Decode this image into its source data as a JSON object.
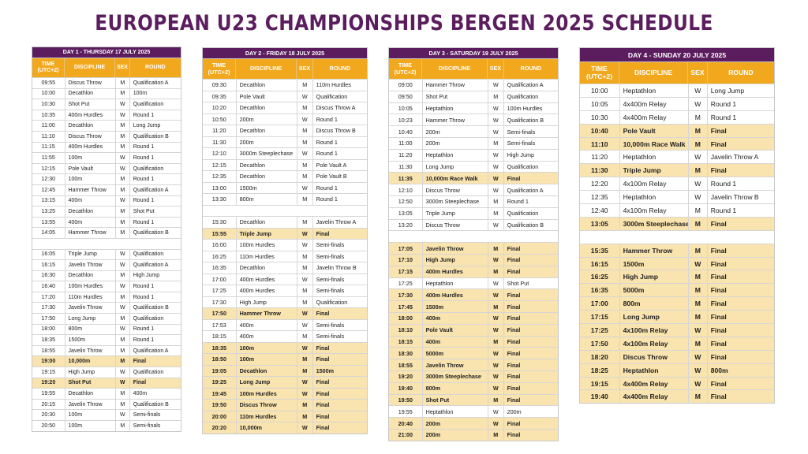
{
  "title": "EUROPEAN U23 CHAMPIONSHIPS BERGEN 2025 SCHEDULE",
  "colors": {
    "title": "#5b1d5e",
    "day_header": "#5b1d5e",
    "column_header": "#f2a81d",
    "final_row": "#f9e3ae"
  },
  "days": [
    {
      "header": "DAY 1 - THURSDAY 17 JULY 2025",
      "columns": {
        "time": "TIME (UTC+2)",
        "discipline": "DISCIPLINE",
        "sex": "SEX",
        "round": "ROUND"
      },
      "rows": [
        {
          "time": "09:55",
          "discipline": "Discus Throw",
          "sex": "M",
          "round": "Qualification A"
        },
        {
          "time": "10:00",
          "discipline": "Decathlon",
          "sex": "M",
          "round": "100m"
        },
        {
          "time": "10:30",
          "discipline": "Shot Put",
          "sex": "W",
          "round": "Qualification"
        },
        {
          "time": "10:35",
          "discipline": "400m Hurdles",
          "sex": "W",
          "round": "Round 1"
        },
        {
          "time": "11:00",
          "discipline": "Decathlon",
          "sex": "M",
          "round": "Long Jump"
        },
        {
          "time": "11:10",
          "discipline": "Discus Throw",
          "sex": "M",
          "round": "Qualification B"
        },
        {
          "time": "11:15",
          "discipline": "400m Hurdles",
          "sex": "M",
          "round": "Round 1"
        },
        {
          "time": "11:55",
          "discipline": "100m",
          "sex": "W",
          "round": "Round 1"
        },
        {
          "time": "12:15",
          "discipline": "Pole Vault",
          "sex": "W",
          "round": "Qualification"
        },
        {
          "time": "12:30",
          "discipline": "100m",
          "sex": "M",
          "round": "Round 1"
        },
        {
          "time": "12:45",
          "discipline": "Hammer Throw",
          "sex": "M",
          "round": "Qualification A"
        },
        {
          "time": "13:15",
          "discipline": "400m",
          "sex": "W",
          "round": "Round 1"
        },
        {
          "time": "13:25",
          "discipline": "Decathlon",
          "sex": "M",
          "round": "Shot Put"
        },
        {
          "time": "13:55",
          "discipline": "400m",
          "sex": "M",
          "round": "Round 1"
        },
        {
          "time": "14:05",
          "discipline": "Hammer Throw",
          "sex": "M",
          "round": "Qualification B"
        },
        {
          "gap": true
        },
        {
          "time": "16:05",
          "discipline": "Triple Jump",
          "sex": "W",
          "round": "Qualification"
        },
        {
          "time": "16:15",
          "discipline": "Javelin Throw",
          "sex": "W",
          "round": "Qualification A"
        },
        {
          "time": "16:30",
          "discipline": "Decathlon",
          "sex": "M",
          "round": "High Jump"
        },
        {
          "time": "16:40",
          "discipline": "100m Hurdles",
          "sex": "W",
          "round": "Round 1"
        },
        {
          "time": "17:20",
          "discipline": "110m Hurdles",
          "sex": "M",
          "round": "Round 1"
        },
        {
          "time": "17:30",
          "discipline": "Javelin Throw",
          "sex": "W",
          "round": "Qualification B"
        },
        {
          "time": "17:50",
          "discipline": "Long Jump",
          "sex": "M",
          "round": "Qualification"
        },
        {
          "time": "18:00",
          "discipline": "800m",
          "sex": "W",
          "round": "Round 1"
        },
        {
          "time": "18:35",
          "discipline": "1500m",
          "sex": "M",
          "round": "Round 1"
        },
        {
          "time": "18:55",
          "discipline": "Javelin Throw",
          "sex": "M",
          "round": "Qualification A"
        },
        {
          "time": "19:00",
          "discipline": "10,000m",
          "sex": "M",
          "round": "Final",
          "final": true
        },
        {
          "time": "19:15",
          "discipline": "High Jump",
          "sex": "W",
          "round": "Qualification"
        },
        {
          "time": "19:20",
          "discipline": "Shot Put",
          "sex": "W",
          "round": "Final",
          "final": true
        },
        {
          "time": "19:55",
          "discipline": "Decathlon",
          "sex": "M",
          "round": "400m"
        },
        {
          "time": "20:15",
          "discipline": "Javelin Throw",
          "sex": "M",
          "round": "Qualification B"
        },
        {
          "time": "20:30",
          "discipline": "100m",
          "sex": "W",
          "round": "Semi-finals"
        },
        {
          "time": "20:50",
          "discipline": "100m",
          "sex": "M",
          "round": "Semi-finals"
        }
      ]
    },
    {
      "header": "DAY 2 - FRIDAY 18 JULY 2025",
      "columns": {
        "time": "TIME (UTC+2)",
        "discipline": "DISCIPLINE",
        "sex": "SEX",
        "round": "ROUND"
      },
      "rows": [
        {
          "time": "09:30",
          "discipline": "Decathlon",
          "sex": "M",
          "round": "110m Hurdles"
        },
        {
          "time": "09:35",
          "discipline": "Pole Vault",
          "sex": "W",
          "round": "Qualification"
        },
        {
          "time": "10:20",
          "discipline": "Decathlon",
          "sex": "M",
          "round": "Discus Throw A"
        },
        {
          "time": "10:50",
          "discipline": "200m",
          "sex": "W",
          "round": "Round 1"
        },
        {
          "time": "11:20",
          "discipline": "Decathlon",
          "sex": "M",
          "round": "Discus Throw B"
        },
        {
          "time": "11:30",
          "discipline": "200m",
          "sex": "M",
          "round": "Round 1"
        },
        {
          "time": "12:10",
          "discipline": "3000m Steeplechase",
          "sex": "W",
          "round": "Round 1"
        },
        {
          "time": "12:15",
          "discipline": "Decathlon",
          "sex": "M",
          "round": "Pole Vault A"
        },
        {
          "time": "12:35",
          "discipline": "Decathlon",
          "sex": "M",
          "round": "Pole Vault B"
        },
        {
          "time": "13:00",
          "discipline": "1500m",
          "sex": "W",
          "round": "Round 1"
        },
        {
          "time": "13:30",
          "discipline": "800m",
          "sex": "M",
          "round": "Round 1"
        },
        {
          "gap": true
        },
        {
          "time": "15:30",
          "discipline": "Decathlon",
          "sex": "M",
          "round": "Javelin Throw A"
        },
        {
          "time": "15:55",
          "discipline": "Triple Jump",
          "sex": "W",
          "round": "Final",
          "final": true
        },
        {
          "time": "16:00",
          "discipline": "100m Hurdles",
          "sex": "W",
          "round": "Semi-finals"
        },
        {
          "time": "16:25",
          "discipline": "110m Hurdles",
          "sex": "M",
          "round": "Semi-finals"
        },
        {
          "time": "16:35",
          "discipline": "Decathlon",
          "sex": "M",
          "round": "Javelin Throw B"
        },
        {
          "time": "17:00",
          "discipline": "400m Hurdles",
          "sex": "W",
          "round": "Semi-finals"
        },
        {
          "time": "17:25",
          "discipline": "400m Hurdles",
          "sex": "M",
          "round": "Semi-finals"
        },
        {
          "time": "17:30",
          "discipline": "High Jump",
          "sex": "M",
          "round": "Qualification"
        },
        {
          "time": "17:50",
          "discipline": "Hammer Throw",
          "sex": "W",
          "round": "Final",
          "final": true
        },
        {
          "time": "17:53",
          "discipline": "400m",
          "sex": "W",
          "round": "Semi-finals"
        },
        {
          "time": "18:15",
          "discipline": "400m",
          "sex": "M",
          "round": "Semi-finals"
        },
        {
          "time": "18:35",
          "discipline": "100m",
          "sex": "W",
          "round": "Final",
          "final": true
        },
        {
          "time": "18:50",
          "discipline": "100m",
          "sex": "M",
          "round": "Final",
          "final": true
        },
        {
          "time": "19:05",
          "discipline": "Decathlon",
          "sex": "M",
          "round": "1500m",
          "final": true
        },
        {
          "time": "19:25",
          "discipline": "Long Jump",
          "sex": "W",
          "round": "Final",
          "final": true
        },
        {
          "time": "19:45",
          "discipline": "100m Hurdles",
          "sex": "W",
          "round": "Final",
          "final": true
        },
        {
          "time": "19:50",
          "discipline": "Discus Throw",
          "sex": "M",
          "round": "Final",
          "final": true
        },
        {
          "time": "20:00",
          "discipline": "110m Hurdles",
          "sex": "M",
          "round": "Final",
          "final": true
        },
        {
          "time": "20:20",
          "discipline": "10,000m",
          "sex": "W",
          "round": "Final",
          "final": true
        }
      ]
    },
    {
      "header": "DAY 3 - SATURDAY 19 JULY 2025",
      "columns": {
        "time": "TIME (UTC+2)",
        "discipline": "DISCIPLINE",
        "sex": "SEX",
        "round": "ROUND"
      },
      "rows": [
        {
          "time": "09:00",
          "discipline": "Hammer Throw",
          "sex": "W",
          "round": "Qualification A"
        },
        {
          "time": "09:50",
          "discipline": "Shot Put",
          "sex": "M",
          "round": "Qualification"
        },
        {
          "time": "10:05",
          "discipline": "Heptathlon",
          "sex": "W",
          "round": "100m Hurdles"
        },
        {
          "time": "10:23",
          "discipline": "Hammer Throw",
          "sex": "W",
          "round": "Qualification B"
        },
        {
          "time": "10:40",
          "discipline": "200m",
          "sex": "W",
          "round": "Semi-finals"
        },
        {
          "time": "11:00",
          "discipline": "200m",
          "sex": "M",
          "round": "Semi-finals"
        },
        {
          "time": "11:20",
          "discipline": "Heptathlon",
          "sex": "W",
          "round": "High Jump"
        },
        {
          "time": "11:30",
          "discipline": "Long Jump",
          "sex": "W",
          "round": "Qualification"
        },
        {
          "time": "11:35",
          "discipline": "10,000m Race Walk",
          "sex": "W",
          "round": "Final",
          "final": true
        },
        {
          "time": "12:10",
          "discipline": "Discus Throw",
          "sex": "W",
          "round": "Qualification A"
        },
        {
          "time": "12:50",
          "discipline": "3000m Steeplechase",
          "sex": "M",
          "round": "Round 1"
        },
        {
          "time": "13:05",
          "discipline": "Triple Jump",
          "sex": "M",
          "round": "Qualification"
        },
        {
          "time": "13:20",
          "discipline": "Discus Throw",
          "sex": "W",
          "round": "Qualification B"
        },
        {
          "gap": true
        },
        {
          "time": "17:05",
          "discipline": "Javelin Throw",
          "sex": "M",
          "round": "Final",
          "final": true
        },
        {
          "time": "17:10",
          "discipline": "High Jump",
          "sex": "W",
          "round": "Final",
          "final": true
        },
        {
          "time": "17:15",
          "discipline": "400m Hurdles",
          "sex": "M",
          "round": "Final",
          "final": true
        },
        {
          "time": "17:25",
          "discipline": "Heptathlon",
          "sex": "W",
          "round": "Shot Put"
        },
        {
          "time": "17:30",
          "discipline": "400m Hurdles",
          "sex": "W",
          "round": "Final",
          "final": true
        },
        {
          "time": "17:45",
          "discipline": "1500m",
          "sex": "M",
          "round": "Final",
          "final": true
        },
        {
          "time": "18:00",
          "discipline": "400m",
          "sex": "W",
          "round": "Final",
          "final": true
        },
        {
          "time": "18:10",
          "discipline": "Pole Vault",
          "sex": "W",
          "round": "Final",
          "final": true
        },
        {
          "time": "18:15",
          "discipline": "400m",
          "sex": "M",
          "round": "Final",
          "final": true
        },
        {
          "time": "18:30",
          "discipline": "5000m",
          "sex": "W",
          "round": "Final",
          "final": true
        },
        {
          "time": "18:55",
          "discipline": "Javelin Throw",
          "sex": "W",
          "round": "Final",
          "final": true
        },
        {
          "time": "19:20",
          "discipline": "3000m Steeplechase",
          "sex": "W",
          "round": "Final",
          "final": true
        },
        {
          "time": "19:40",
          "discipline": "800m",
          "sex": "W",
          "round": "Final",
          "final": true
        },
        {
          "time": "19:50",
          "discipline": "Shot Put",
          "sex": "M",
          "round": "Final",
          "final": true
        },
        {
          "time": "19:55",
          "discipline": "Heptathlon",
          "sex": "W",
          "round": "200m"
        },
        {
          "time": "20:40",
          "discipline": "200m",
          "sex": "W",
          "round": "Final",
          "final": true
        },
        {
          "time": "21:00",
          "discipline": "200m",
          "sex": "M",
          "round": "Final",
          "final": true
        }
      ]
    },
    {
      "header": "DAY 4 - SUNDAY 20 JULY 2025",
      "columns": {
        "time": "TIME (UTC+2)",
        "discipline": "DISCIPLINE",
        "sex": "SEX",
        "round": "ROUND"
      },
      "rows": [
        {
          "time": "10:00",
          "discipline": "Heptathlon",
          "sex": "W",
          "round": "Long Jump"
        },
        {
          "time": "10:05",
          "discipline": "4x400m Relay",
          "sex": "W",
          "round": "Round 1"
        },
        {
          "time": "10:30",
          "discipline": "4x400m Relay",
          "sex": "M",
          "round": "Round 1"
        },
        {
          "time": "10:40",
          "discipline": "Pole Vault",
          "sex": "M",
          "round": "Final",
          "final": true
        },
        {
          "time": "11:10",
          "discipline": "10,000m Race Walk",
          "sex": "M",
          "round": "Final",
          "final": true
        },
        {
          "time": "11:20",
          "discipline": "Heptathlon",
          "sex": "W",
          "round": "Javelin Throw A"
        },
        {
          "time": "11:30",
          "discipline": "Triple Jump",
          "sex": "M",
          "round": "Final",
          "final": true
        },
        {
          "time": "12:20",
          "discipline": "4x100m Relay",
          "sex": "W",
          "round": "Round 1"
        },
        {
          "time": "12:35",
          "discipline": "Heptathlon",
          "sex": "W",
          "round": "Javelin Throw B"
        },
        {
          "time": "12:40",
          "discipline": "4x100m Relay",
          "sex": "M",
          "round": "Round 1"
        },
        {
          "time": "13:05",
          "discipline": "3000m Steeplechase",
          "sex": "M",
          "round": "Final",
          "final": true
        },
        {
          "gap": true
        },
        {
          "time": "15:35",
          "discipline": "Hammer Throw",
          "sex": "M",
          "round": "Final",
          "final": true
        },
        {
          "time": "16:15",
          "discipline": "1500m",
          "sex": "W",
          "round": "Final",
          "final": true
        },
        {
          "time": "16:25",
          "discipline": "High Jump",
          "sex": "M",
          "round": "Final",
          "final": true
        },
        {
          "time": "16:35",
          "discipline": "5000m",
          "sex": "M",
          "round": "Final",
          "final": true
        },
        {
          "time": "17:00",
          "discipline": "800m",
          "sex": "M",
          "round": "Final",
          "final": true
        },
        {
          "time": "17:15",
          "discipline": "Long Jump",
          "sex": "M",
          "round": "Final",
          "final": true
        },
        {
          "time": "17:25",
          "discipline": "4x100m Relay",
          "sex": "W",
          "round": "Final",
          "final": true
        },
        {
          "time": "17:50",
          "discipline": "4x100m Relay",
          "sex": "M",
          "round": "Final",
          "final": true
        },
        {
          "time": "18:20",
          "discipline": "Discus Throw",
          "sex": "W",
          "round": "Final",
          "final": true
        },
        {
          "time": "18:25",
          "discipline": "Heptathlon",
          "sex": "W",
          "round": "800m",
          "final": true
        },
        {
          "time": "19:15",
          "discipline": "4x400m Relay",
          "sex": "W",
          "round": "Final",
          "final": true
        },
        {
          "time": "19:40",
          "discipline": "4x400m Relay",
          "sex": "M",
          "round": "Final",
          "final": true
        }
      ]
    }
  ]
}
